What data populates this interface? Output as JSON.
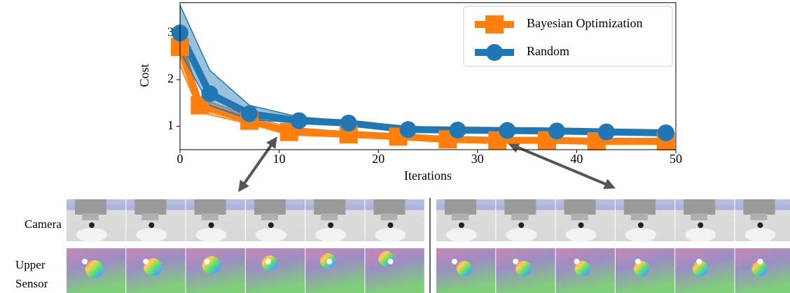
{
  "chart_data": {
    "type": "line",
    "xlabel": "Iterations",
    "ylabel": "Cost",
    "xlim": [
      0,
      50
    ],
    "xticks": [
      0,
      10,
      20,
      30,
      40,
      50
    ],
    "ylim": [
      0.5,
      3.65
    ],
    "yticks": [
      1,
      2,
      3
    ],
    "legend": "upper right",
    "series": [
      {
        "name": "Bayesian Optimization",
        "color": "#ff7f0e",
        "marker": "square",
        "x": [
          0,
          2,
          7,
          11,
          17,
          22,
          27,
          32,
          37,
          42,
          49
        ],
        "values": [
          2.7,
          1.45,
          1.12,
          0.88,
          0.83,
          0.78,
          0.72,
          0.7,
          0.7,
          0.68,
          0.68
        ],
        "upper": [
          3.0,
          1.6,
          1.22,
          0.98,
          0.88,
          0.83,
          0.76,
          0.73,
          0.72,
          0.7,
          0.7
        ],
        "lower": [
          2.3,
          1.3,
          1.05,
          0.82,
          0.79,
          0.74,
          0.68,
          0.67,
          0.67,
          0.66,
          0.66
        ]
      },
      {
        "name": "Random",
        "color": "#1f77b4",
        "marker": "circle",
        "x": [
          0,
          3,
          7,
          12,
          17,
          23,
          28,
          33,
          38,
          43,
          49
        ],
        "values": [
          3.0,
          1.7,
          1.27,
          1.12,
          1.07,
          0.93,
          0.92,
          0.91,
          0.9,
          0.88,
          0.86
        ],
        "upper": [
          3.6,
          2.2,
          1.45,
          1.2,
          1.12,
          1.0,
          0.97,
          0.95,
          0.93,
          0.91,
          0.89
        ],
        "lower": [
          2.6,
          1.45,
          1.15,
          1.07,
          1.03,
          0.88,
          0.88,
          0.88,
          0.87,
          0.86,
          0.84
        ]
      }
    ]
  },
  "row_labels": [
    "Camera",
    "Upper Sensor"
  ]
}
